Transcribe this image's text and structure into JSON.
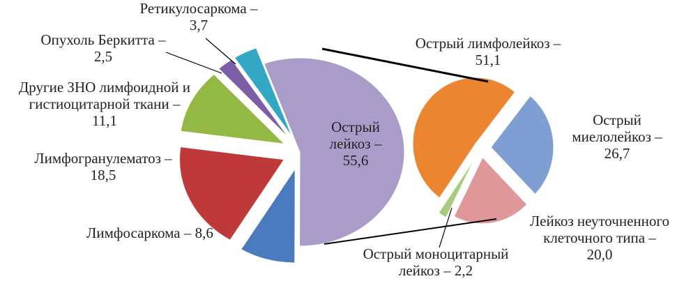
{
  "chart_data": [
    {
      "type": "pie",
      "categories": [
        "Острый лейкоз –",
        "Лимфосаркома –",
        "Лимфогранулематоз –",
        "Другие ЗНО лимфоидной и гистиоцитарной ткани –",
        "Опухоль Беркитта –",
        "Ретикулосаркома –"
      ],
      "values": [
        55.6,
        8.6,
        18.5,
        11.1,
        2.5,
        3.7
      ],
      "value_labels": [
        "55,6",
        "8,6",
        "18,5",
        "11,1",
        "2,5",
        "3,7"
      ],
      "colors": [
        "#a99cc9",
        "#4a7bbf",
        "#c0393a",
        "#93b844",
        "#7b5ea6",
        "#33a7c4"
      ]
    },
    {
      "type": "pie",
      "categories": [
        "Острый лимфолейкоз –",
        "Острый миелолейкоз –",
        "Лейкоз неуточненного клеточного типа –",
        "Острый моноцитарный лейкоз –"
      ],
      "values": [
        51.1,
        26.7,
        20.0,
        2.2
      ],
      "value_labels": [
        "51,1",
        "26,7",
        "20,0",
        "2,2"
      ],
      "colors": [
        "#eb8530",
        "#7f9fd3",
        "#e0979a",
        "#a7cc7d"
      ]
    }
  ]
}
